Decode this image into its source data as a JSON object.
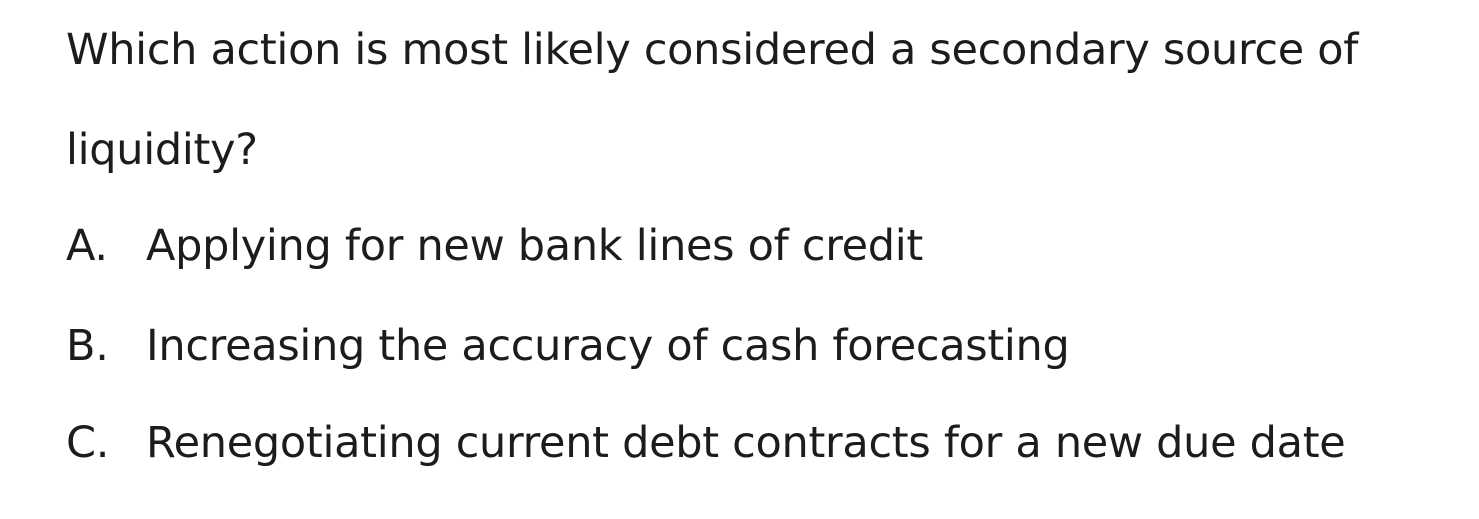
{
  "question": {
    "line1": "Which action is most likely considered a secondary source of",
    "line2": "liquidity?"
  },
  "options": [
    {
      "letter": "A.",
      "text": "Applying for new bank lines of credit"
    },
    {
      "letter": "B.",
      "text": "Increasing the accuracy of cash forecasting"
    },
    {
      "letter": "C.",
      "text": "Renegotiating current debt contracts for a new due date"
    }
  ]
}
